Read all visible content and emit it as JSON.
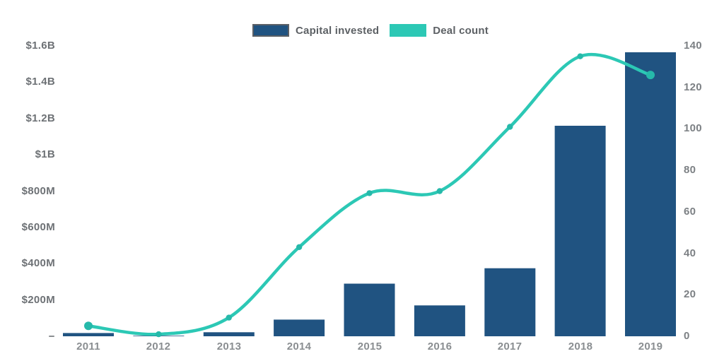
{
  "legend": {
    "items": [
      {
        "label": "Capital invested",
        "color": "#205381",
        "swatch": "blue-bordered"
      },
      {
        "label": "Deal count",
        "color": "#2cc8b5",
        "swatch": "teal"
      }
    ]
  },
  "chart_data": {
    "type": "combo",
    "title": "",
    "categories": [
      "2011",
      "2012",
      "2013",
      "2014",
      "2015",
      "2016",
      "2017",
      "2018",
      "2019"
    ],
    "series": [
      {
        "name": "Capital invested",
        "type": "bar",
        "axis": "left",
        "unit": "USD millions",
        "color": "#205381",
        "values": [
          18,
          3,
          22,
          92,
          290,
          170,
          375,
          1160,
          1565
        ]
      },
      {
        "name": "Deal count",
        "type": "line",
        "axis": "right",
        "unit": "deals",
        "color": "#2cc8b5",
        "marker_color": "#26b9aa",
        "values": [
          5,
          1,
          9,
          43,
          69,
          70,
          101,
          135,
          126
        ]
      }
    ],
    "left_axis": {
      "tick_labels": [
        "$1.6B",
        "$1.4B",
        "$1.2B",
        "$1B",
        "$800M",
        "$600M",
        "$400M",
        "$200M",
        "-"
      ],
      "tick_values": [
        1600,
        1400,
        1200,
        1000,
        800,
        600,
        400,
        200,
        0
      ],
      "max": 1600,
      "unit": "USD millions"
    },
    "right_axis": {
      "tick_labels": [
        "140",
        "120",
        "100",
        "80",
        "60",
        "40",
        "20",
        "0"
      ],
      "tick_values": [
        140,
        120,
        100,
        80,
        60,
        40,
        20,
        0
      ],
      "max": 140,
      "unit": "deals"
    },
    "grid": false,
    "legend_position": "top-center",
    "background": "#ffffff"
  }
}
